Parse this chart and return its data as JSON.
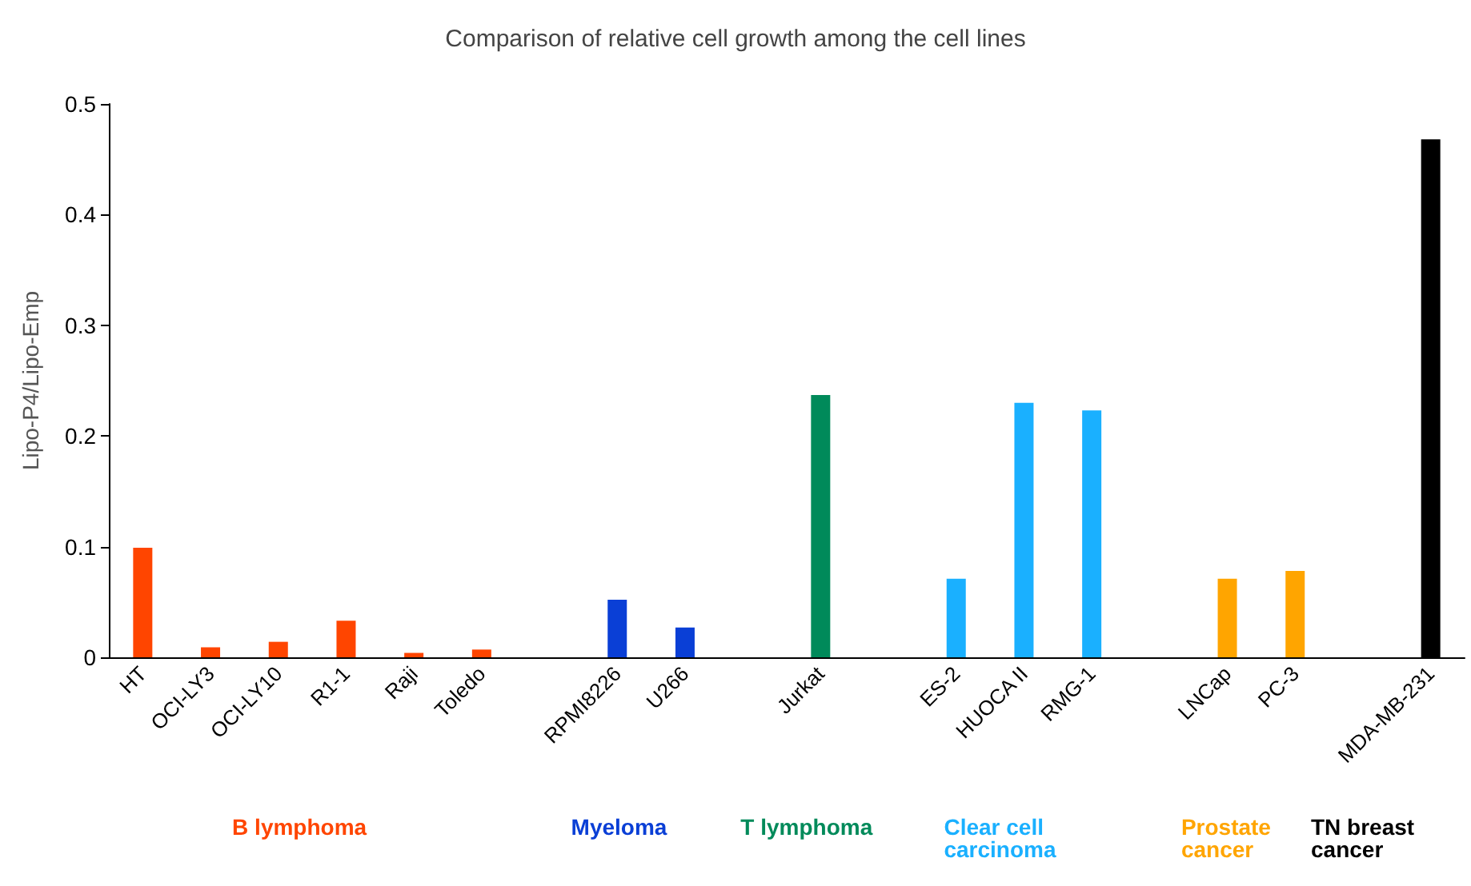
{
  "chart_data": {
    "type": "bar",
    "title": "Comparison of relative cell growth among the cell lines",
    "ylabel": "Lipo-P4/Lipo-Emp",
    "categories": [
      "HT",
      "OCI-LY3",
      "OCI-LY10",
      "R1-1",
      "Raji",
      "Toledo",
      null,
      "RPMI8226",
      "U266",
      null,
      "Jurkat",
      null,
      "ES-2",
      "HUOCA II",
      "RMG-1",
      null,
      "LNCap",
      "PC-3",
      null,
      "MDA-MB-231"
    ],
    "values": [
      0.099,
      0.009,
      0.014,
      0.033,
      0.004,
      0.007,
      null,
      0.052,
      0.027,
      null,
      0.237,
      null,
      0.071,
      0.23,
      0.223,
      null,
      0.071,
      0.078,
      null,
      0.468
    ],
    "colors": [
      "#ff4500",
      "#ff4500",
      "#ff4500",
      "#ff4500",
      "#ff4500",
      "#ff4500",
      null,
      "#0a3fd6",
      "#0a3fd6",
      null,
      "#008a5a",
      null,
      "#1ab0ff",
      "#1ab0ff",
      "#1ab0ff",
      null,
      "#ffa500",
      "#ffa500",
      null,
      "#000000"
    ],
    "ylim": [
      0,
      0.5
    ],
    "yticks": [
      0,
      0.1,
      0.2,
      0.3,
      0.4,
      0.5
    ],
    "grid": false,
    "annotations": [
      "B lymphoma",
      "Myeloma",
      "T lymphoma",
      "Clear cell carcinoma",
      "Prostate cancer",
      "TN breast cancer"
    ]
  }
}
